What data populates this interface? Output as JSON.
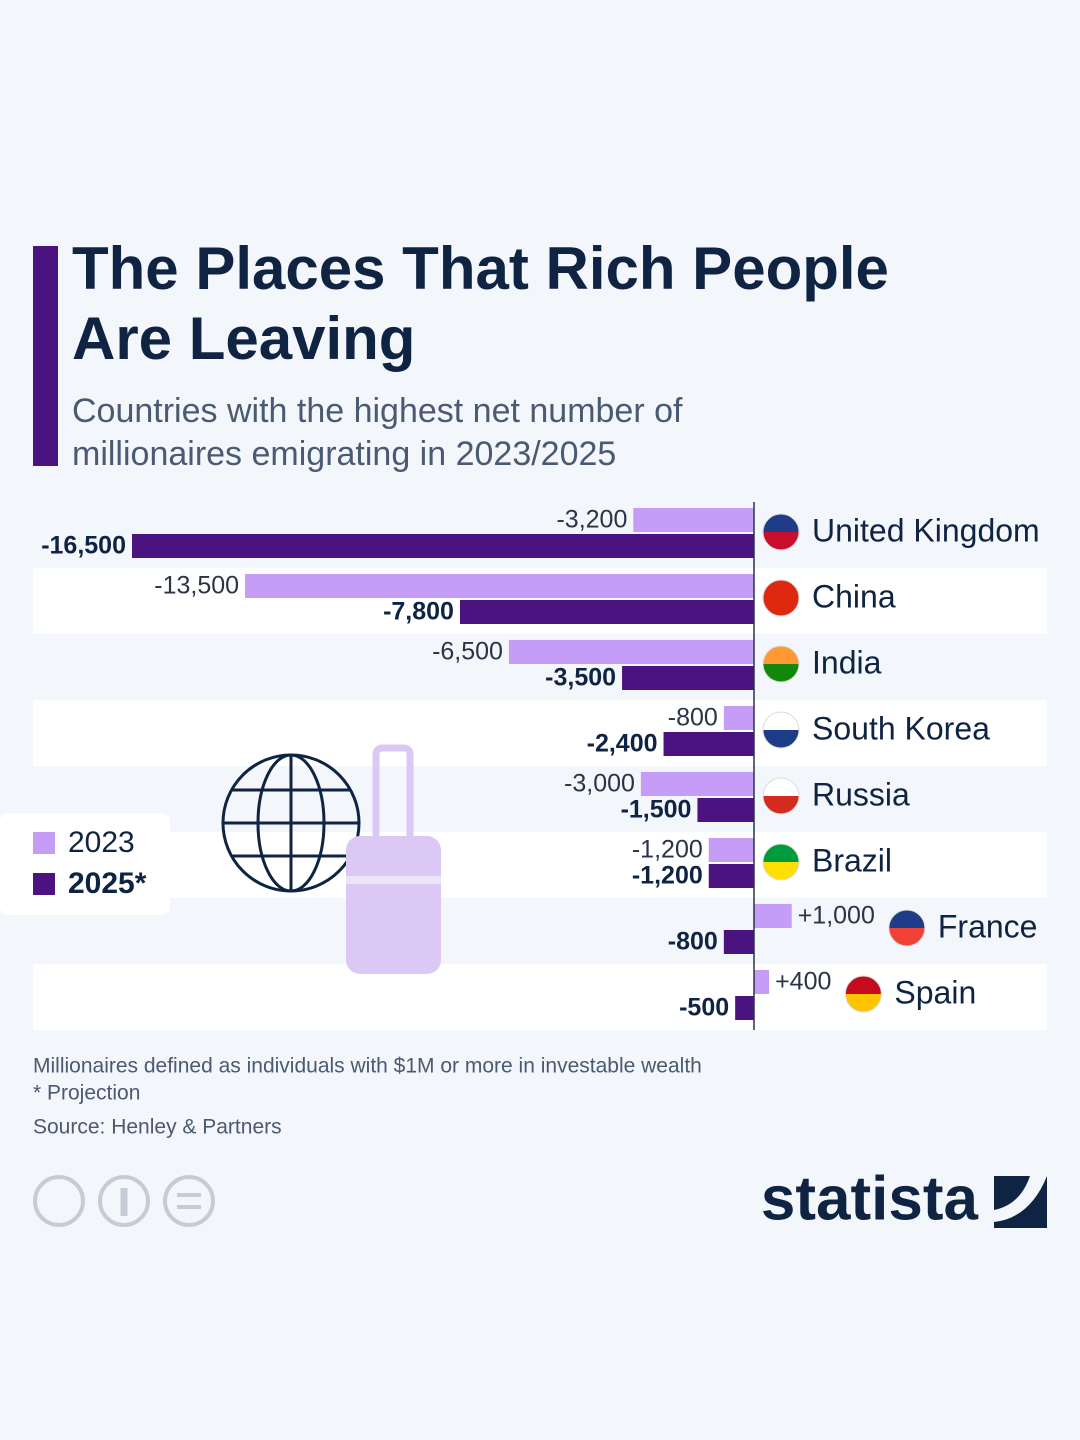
{
  "chart_data": {
    "type": "bar",
    "orientation": "horizontal",
    "title": "The Places That Rich People Are Leaving",
    "subtitle": "Countries with the highest net number of millionaires emigrating in 2023/2025",
    "categories": [
      "United Kingdom",
      "China",
      "India",
      "South Korea",
      "Russia",
      "Brazil",
      "France",
      "Spain"
    ],
    "series": [
      {
        "name": "2023",
        "color": "#c59cf6",
        "values": [
          -3200,
          -13500,
          -6500,
          -800,
          -3000,
          -1200,
          1000,
          400
        ],
        "value_labels": [
          "-3,200",
          "-13,500",
          "-6,500",
          "-800",
          "-3,000",
          "-1,200",
          "+1,000",
          "+400"
        ]
      },
      {
        "name": "2025*",
        "color": "#4b1380",
        "values": [
          -16500,
          -7800,
          -3500,
          -2400,
          -1500,
          -1200,
          -800,
          -500
        ],
        "value_labels": [
          "-16,500",
          "-7,800",
          "-3,500",
          "-2,400",
          "-1,500",
          "-1,200",
          "-800",
          "-500"
        ]
      }
    ],
    "xlim": [
      -16500,
      0
    ],
    "notes": [
      "Millionaires defined as individuals with $1M or more in investable wealth",
      "* Projection"
    ],
    "source": "Source: Henley & Partners",
    "brand": "statista"
  }
}
